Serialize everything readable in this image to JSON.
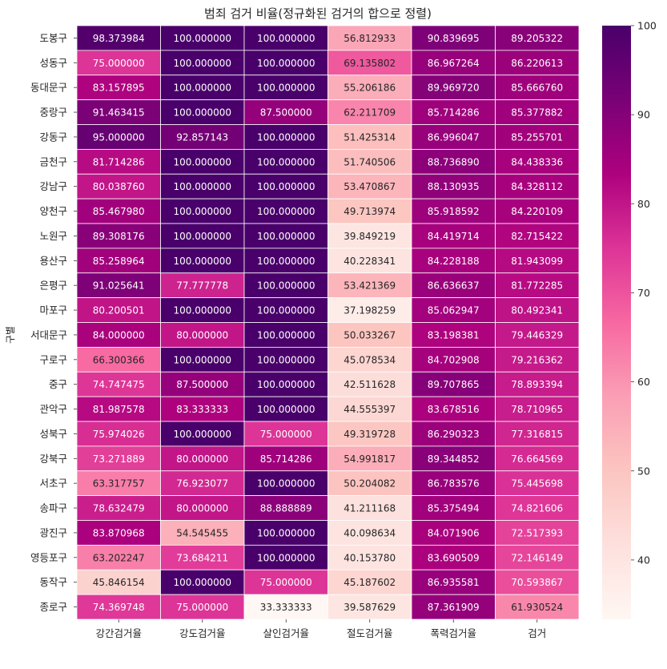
{
  "chart_data": {
    "type": "heatmap",
    "title": "범죄 검거 비율(정규화된 검거의 합으로 정렬)",
    "ylabel": "구별",
    "xlabel": "",
    "columns": [
      "강간검거율",
      "강도검거율",
      "살인검거율",
      "절도검거율",
      "폭력검거율",
      "검거"
    ],
    "rows": [
      "도봉구",
      "성동구",
      "동대문구",
      "중랑구",
      "강동구",
      "금천구",
      "강남구",
      "양천구",
      "노원구",
      "용산구",
      "은평구",
      "마포구",
      "서대문구",
      "구로구",
      "중구",
      "관악구",
      "성북구",
      "강북구",
      "서초구",
      "송파구",
      "광진구",
      "영등포구",
      "동작구",
      "종로구"
    ],
    "values": [
      [
        "98.373984",
        "100.000000",
        "100.000000",
        "56.812933",
        "90.839695",
        "89.205322"
      ],
      [
        "75.000000",
        "100.000000",
        "100.000000",
        "69.135802",
        "86.967264",
        "86.220613"
      ],
      [
        "83.157895",
        "100.000000",
        "100.000000",
        "55.206186",
        "89.969720",
        "85.666760"
      ],
      [
        "91.463415",
        "100.000000",
        "87.500000",
        "62.211709",
        "85.714286",
        "85.377882"
      ],
      [
        "95.000000",
        "92.857143",
        "100.000000",
        "51.425314",
        "86.996047",
        "85.255701"
      ],
      [
        "81.714286",
        "100.000000",
        "100.000000",
        "51.740506",
        "88.736890",
        "84.438336"
      ],
      [
        "80.038760",
        "100.000000",
        "100.000000",
        "53.470867",
        "88.130935",
        "84.328112"
      ],
      [
        "85.467980",
        "100.000000",
        "100.000000",
        "49.713974",
        "85.918592",
        "84.220109"
      ],
      [
        "89.308176",
        "100.000000",
        "100.000000",
        "39.849219",
        "84.419714",
        "82.715422"
      ],
      [
        "85.258964",
        "100.000000",
        "100.000000",
        "40.228341",
        "84.228188",
        "81.943099"
      ],
      [
        "91.025641",
        "77.777778",
        "100.000000",
        "53.421369",
        "86.636637",
        "81.772285"
      ],
      [
        "80.200501",
        "100.000000",
        "100.000000",
        "37.198259",
        "85.062947",
        "80.492341"
      ],
      [
        "84.000000",
        "80.000000",
        "100.000000",
        "50.033267",
        "83.198381",
        "79.446329"
      ],
      [
        "66.300366",
        "100.000000",
        "100.000000",
        "45.078534",
        "84.702908",
        "79.216362"
      ],
      [
        "74.747475",
        "87.500000",
        "100.000000",
        "42.511628",
        "89.707865",
        "78.893394"
      ],
      [
        "81.987578",
        "83.333333",
        "100.000000",
        "44.555397",
        "83.678516",
        "78.710965"
      ],
      [
        "75.974026",
        "100.000000",
        "75.000000",
        "49.319728",
        "86.290323",
        "77.316815"
      ],
      [
        "73.271889",
        "80.000000",
        "85.714286",
        "54.991817",
        "89.344852",
        "76.664569"
      ],
      [
        "63.317757",
        "76.923077",
        "100.000000",
        "50.204082",
        "86.783576",
        "75.445698"
      ],
      [
        "78.632479",
        "80.000000",
        "88.888889",
        "41.211168",
        "85.375494",
        "74.821606"
      ],
      [
        "83.870968",
        "54.545455",
        "100.000000",
        "40.098634",
        "84.071906",
        "72.517393"
      ],
      [
        "63.202247",
        "73.684211",
        "100.000000",
        "40.153780",
        "83.690509",
        "72.146149"
      ],
      [
        "45.846154",
        "100.000000",
        "75.000000",
        "45.187602",
        "86.935581",
        "70.593867"
      ],
      [
        "74.369748",
        "75.000000",
        "33.333333",
        "39.587629",
        "87.361909",
        "61.930524"
      ]
    ],
    "colormap": "RdPu",
    "vmin": 33.333333,
    "vmax": 100,
    "colorbar_ticks": [
      "40",
      "50",
      "60",
      "70",
      "80",
      "90",
      "100"
    ],
    "annotations": true,
    "grid": false,
    "legend": "colorbar-right"
  }
}
